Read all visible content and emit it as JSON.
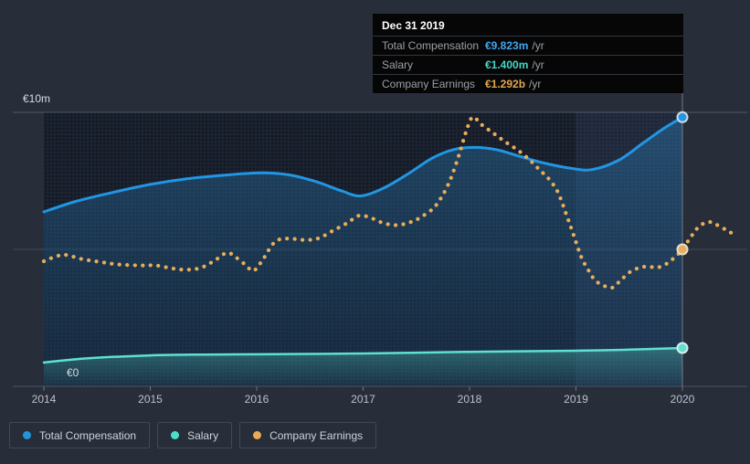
{
  "tooltip": {
    "title": "Dec 31 2019",
    "rows": [
      {
        "label": "Total Compensation",
        "value": "€9.823m",
        "suffix": "/yr",
        "color": "#41a7f0"
      },
      {
        "label": "Salary",
        "value": "€1.400m",
        "suffix": "/yr",
        "color": "#43d8c7"
      },
      {
        "label": "Company Earnings",
        "value": "€1.292b",
        "suffix": "/yr",
        "color": "#e2a850"
      }
    ]
  },
  "legend": [
    {
      "label": "Total Compensation",
      "color": "#2095dd"
    },
    {
      "label": "Salary",
      "color": "#4ce0c8"
    },
    {
      "label": "Company Earnings",
      "color": "#e7aa55"
    }
  ],
  "y_axis": {
    "top_label": "€10m",
    "bottom_label": "€0"
  },
  "x_axis": {
    "ticks": [
      "2014",
      "2015",
      "2016",
      "2017",
      "2018",
      "2019",
      "2020"
    ]
  },
  "chart_data": {
    "type": "line",
    "title": "Executive compensation vs company earnings over time",
    "x_unit": "year",
    "xlim": [
      2014,
      2020.55
    ],
    "ylim_compensation_millions": [
      0,
      10
    ],
    "grid": "horizontal",
    "legend_position": "bottom-left",
    "highlight_period": [
      2019,
      2020
    ],
    "marker_x": 2020,
    "series": [
      {
        "name": "Total Compensation",
        "unit": "EUR millions/yr",
        "style": "solid-area",
        "color": "#2196e3",
        "points": [
          [
            2014.0,
            6.37
          ],
          [
            2014.3,
            6.75
          ],
          [
            2014.65,
            7.08
          ],
          [
            2015.0,
            7.37
          ],
          [
            2015.35,
            7.58
          ],
          [
            2015.7,
            7.71
          ],
          [
            2016.05,
            7.79
          ],
          [
            2016.3,
            7.72
          ],
          [
            2016.55,
            7.48
          ],
          [
            2016.8,
            7.13
          ],
          [
            2016.98,
            6.95
          ],
          [
            2017.2,
            7.25
          ],
          [
            2017.42,
            7.75
          ],
          [
            2017.65,
            8.33
          ],
          [
            2017.85,
            8.64
          ],
          [
            2018.05,
            8.72
          ],
          [
            2018.25,
            8.64
          ],
          [
            2018.45,
            8.42
          ],
          [
            2018.7,
            8.15
          ],
          [
            2018.95,
            7.96
          ],
          [
            2019.15,
            7.91
          ],
          [
            2019.4,
            8.25
          ],
          [
            2019.62,
            8.85
          ],
          [
            2019.82,
            9.4
          ],
          [
            2020.0,
            9.823
          ]
        ]
      },
      {
        "name": "Salary",
        "unit": "EUR millions/yr",
        "style": "solid-area",
        "color": "#5fe0d2",
        "points": [
          [
            2014.0,
            0.87
          ],
          [
            2014.4,
            1.02
          ],
          [
            2015.0,
            1.13
          ],
          [
            2015.5,
            1.16
          ],
          [
            2016.0,
            1.17
          ],
          [
            2017.0,
            1.2
          ],
          [
            2018.0,
            1.26
          ],
          [
            2019.0,
            1.3
          ],
          [
            2019.5,
            1.34
          ],
          [
            2020.0,
            1.4
          ]
        ]
      },
      {
        "name": "Company Earnings",
        "unit": "EUR billions/yr",
        "style": "dotted",
        "color": "#e7ae59",
        "points": [
          [
            2014.0,
            1.18
          ],
          [
            2014.1,
            1.22
          ],
          [
            2014.2,
            1.24
          ],
          [
            2014.36,
            1.2
          ],
          [
            2014.55,
            1.17
          ],
          [
            2014.7,
            1.15
          ],
          [
            2014.9,
            1.14
          ],
          [
            2015.05,
            1.14
          ],
          [
            2015.22,
            1.11
          ],
          [
            2015.35,
            1.1
          ],
          [
            2015.48,
            1.12
          ],
          [
            2015.61,
            1.19
          ],
          [
            2015.72,
            1.26
          ],
          [
            2015.8,
            1.22
          ],
          [
            2015.89,
            1.15
          ],
          [
            2015.97,
            1.09
          ],
          [
            2016.06,
            1.2
          ],
          [
            2016.15,
            1.34
          ],
          [
            2016.23,
            1.39
          ],
          [
            2016.35,
            1.39
          ],
          [
            2016.47,
            1.38
          ],
          [
            2016.59,
            1.4
          ],
          [
            2016.72,
            1.47
          ],
          [
            2016.85,
            1.54
          ],
          [
            2016.96,
            1.61
          ],
          [
            2017.07,
            1.59
          ],
          [
            2017.19,
            1.54
          ],
          [
            2017.32,
            1.52
          ],
          [
            2017.45,
            1.55
          ],
          [
            2017.55,
            1.6
          ],
          [
            2017.66,
            1.68
          ],
          [
            2017.74,
            1.79
          ],
          [
            2017.82,
            1.95
          ],
          [
            2017.9,
            2.18
          ],
          [
            2017.97,
            2.41
          ],
          [
            2018.03,
            2.54
          ],
          [
            2018.11,
            2.47
          ],
          [
            2018.22,
            2.39
          ],
          [
            2018.33,
            2.31
          ],
          [
            2018.45,
            2.23
          ],
          [
            2018.56,
            2.14
          ],
          [
            2018.66,
            2.04
          ],
          [
            2018.75,
            1.95
          ],
          [
            2018.83,
            1.83
          ],
          [
            2018.91,
            1.62
          ],
          [
            2018.98,
            1.42
          ],
          [
            2019.05,
            1.22
          ],
          [
            2019.12,
            1.09
          ],
          [
            2019.18,
            1.0
          ],
          [
            2019.26,
            0.95
          ],
          [
            2019.34,
            0.93
          ],
          [
            2019.42,
            1.0
          ],
          [
            2019.51,
            1.08
          ],
          [
            2019.6,
            1.12
          ],
          [
            2019.68,
            1.13
          ],
          [
            2019.76,
            1.12
          ],
          [
            2019.84,
            1.15
          ],
          [
            2019.92,
            1.21
          ],
          [
            2020.0,
            1.292
          ],
          [
            2020.08,
            1.41
          ],
          [
            2020.16,
            1.51
          ],
          [
            2020.25,
            1.55
          ],
          [
            2020.33,
            1.52
          ],
          [
            2020.42,
            1.47
          ],
          [
            2020.49,
            1.43
          ]
        ]
      }
    ],
    "markers_at_2020": [
      {
        "series": "Total Compensation",
        "value": "9.823 EUR m"
      },
      {
        "series": "Salary",
        "value": "1.400 EUR m"
      },
      {
        "series": "Company Earnings",
        "value": "1.292 EUR b"
      }
    ]
  }
}
